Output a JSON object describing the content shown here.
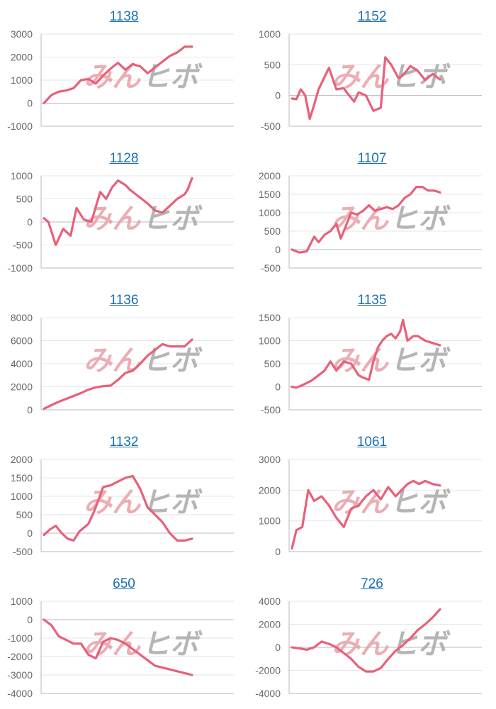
{
  "colors": {
    "line": "#e8607a",
    "grid": "#e6e6e6",
    "axis": "#b8b8b8",
    "tick_text": "#666666",
    "title_link": "#1a6fb0",
    "watermark_pink": "#e8a0a8",
    "watermark_gray": "#a9a9a9"
  },
  "watermark": {
    "part1": "みん",
    "part2": "ヒボ"
  },
  "chart_data": [
    {
      "type": "line",
      "title": "1138",
      "yticks": [
        3000,
        2000,
        1000,
        0,
        -1000
      ],
      "ylim": [
        -1000,
        3000
      ],
      "x": [
        0,
        5,
        10,
        15,
        20,
        25,
        30,
        35,
        40,
        45,
        50,
        55,
        60,
        62,
        65,
        70,
        75,
        80,
        85,
        90,
        95,
        100
      ],
      "values": [
        0,
        350,
        500,
        550,
        650,
        1000,
        1050,
        850,
        1200,
        1500,
        1750,
        1450,
        1700,
        1650,
        1600,
        1300,
        1550,
        1800,
        2050,
        2200,
        2450,
        2450
      ]
    },
    {
      "type": "line",
      "title": "1152",
      "yticks": [
        1000,
        500,
        0,
        -500
      ],
      "ylim": [
        -500,
        1000
      ],
      "x": [
        0,
        3,
        6,
        9,
        12,
        15,
        18,
        20,
        25,
        30,
        35,
        37,
        42,
        45,
        50,
        55,
        60,
        63,
        67,
        72,
        75,
        80,
        85,
        90,
        95,
        100
      ],
      "values": [
        -50,
        -60,
        100,
        0,
        -380,
        -150,
        100,
        200,
        450,
        100,
        120,
        50,
        -100,
        50,
        0,
        -250,
        -200,
        620,
        500,
        280,
        330,
        480,
        400,
        250,
        350,
        260
      ]
    },
    {
      "type": "line",
      "title": "1128",
      "yticks": [
        1000,
        500,
        0,
        -500,
        -1000
      ],
      "ylim": [
        -1000,
        1000
      ],
      "x": [
        0,
        3,
        8,
        13,
        18,
        22,
        27,
        32,
        38,
        42,
        46,
        50,
        55,
        58,
        62,
        66,
        70,
        75,
        80,
        85,
        90,
        95,
        97,
        100
      ],
      "values": [
        80,
        0,
        -500,
        -150,
        -300,
        300,
        50,
        0,
        650,
        500,
        750,
        900,
        800,
        700,
        600,
        500,
        400,
        250,
        200,
        350,
        500,
        600,
        700,
        950
      ]
    },
    {
      "type": "line",
      "title": "1107",
      "yticks": [
        2000,
        1500,
        1000,
        500,
        0,
        -500
      ],
      "ylim": [
        -500,
        2000
      ],
      "x": [
        0,
        5,
        10,
        15,
        18,
        22,
        26,
        30,
        33,
        36,
        40,
        44,
        48,
        52,
        56,
        60,
        64,
        68,
        72,
        76,
        80,
        84,
        88,
        92,
        96,
        100
      ],
      "values": [
        0,
        -80,
        -50,
        350,
        200,
        400,
        500,
        700,
        300,
        600,
        1000,
        950,
        1050,
        1200,
        1050,
        1100,
        1150,
        1100,
        1200,
        1400,
        1500,
        1700,
        1700,
        1600,
        1600,
        1550
      ]
    },
    {
      "type": "line",
      "title": "1136",
      "yticks": [
        8000,
        6000,
        4000,
        2000,
        0
      ],
      "ylim": [
        0,
        8000
      ],
      "x": [
        0,
        5,
        10,
        15,
        20,
        25,
        30,
        35,
        40,
        45,
        50,
        55,
        60,
        65,
        70,
        75,
        80,
        85,
        90,
        95,
        100
      ],
      "values": [
        100,
        400,
        700,
        950,
        1200,
        1450,
        1750,
        1950,
        2050,
        2100,
        2600,
        3200,
        3400,
        4000,
        4700,
        5200,
        5700,
        5500,
        5500,
        5500,
        6100
      ]
    },
    {
      "type": "line",
      "title": "1135",
      "yticks": [
        1500,
        1000,
        500,
        0,
        -500
      ],
      "ylim": [
        -500,
        1500
      ],
      "x": [
        0,
        3,
        8,
        13,
        18,
        22,
        26,
        30,
        35,
        40,
        45,
        48,
        52,
        55,
        58,
        61,
        64,
        67,
        70,
        73,
        75,
        78,
        82,
        85,
        90,
        95,
        100
      ],
      "values": [
        0,
        -20,
        50,
        130,
        250,
        350,
        550,
        350,
        550,
        500,
        250,
        200,
        150,
        550,
        850,
        1000,
        1100,
        1150,
        1050,
        1200,
        1450,
        1000,
        1100,
        1100,
        1000,
        950,
        900
      ]
    },
    {
      "type": "line",
      "title": "1132",
      "yticks": [
        2000,
        1500,
        1000,
        500,
        0,
        -500
      ],
      "ylim": [
        -500,
        2000
      ],
      "x": [
        0,
        4,
        8,
        12,
        16,
        20,
        24,
        30,
        34,
        40,
        45,
        50,
        55,
        60,
        65,
        70,
        75,
        80,
        85,
        90,
        95,
        100
      ],
      "values": [
        -50,
        100,
        200,
        0,
        -150,
        -200,
        50,
        250,
        600,
        1250,
        1300,
        1400,
        1500,
        1550,
        1200,
        700,
        500,
        300,
        0,
        -200,
        -200,
        -150
      ]
    },
    {
      "type": "line",
      "title": "1061",
      "yticks": [
        3000,
        2000,
        1000,
        0
      ],
      "ylim": [
        0,
        3000
      ],
      "x": [
        0,
        3,
        7,
        11,
        15,
        20,
        25,
        30,
        35,
        40,
        45,
        50,
        55,
        60,
        65,
        70,
        74,
        78,
        82,
        86,
        90,
        95,
        100
      ],
      "values": [
        100,
        700,
        800,
        2000,
        1650,
        1800,
        1500,
        1100,
        800,
        1400,
        1500,
        1800,
        2000,
        1700,
        2100,
        1800,
        2000,
        2200,
        2300,
        2200,
        2300,
        2200,
        2150
      ]
    },
    {
      "type": "line",
      "title": "650",
      "yticks": [
        1000,
        0,
        -1000,
        -2000,
        -3000,
        -4000
      ],
      "ylim": [
        -4000,
        1000
      ],
      "x": [
        0,
        5,
        10,
        15,
        20,
        25,
        30,
        35,
        40,
        45,
        50,
        55,
        60,
        65,
        70,
        75,
        80,
        85,
        90,
        95,
        100
      ],
      "values": [
        0,
        -300,
        -900,
        -1100,
        -1300,
        -1300,
        -1900,
        -2100,
        -1200,
        -1000,
        -1100,
        -1300,
        -1600,
        -1900,
        -2200,
        -2500,
        -2600,
        -2700,
        -2800,
        -2900,
        -3000
      ]
    },
    {
      "type": "line",
      "title": "726",
      "yticks": [
        4000,
        2000,
        0,
        -2000,
        -4000
      ],
      "ylim": [
        -4000,
        4000
      ],
      "x": [
        0,
        5,
        10,
        15,
        20,
        25,
        30,
        35,
        40,
        45,
        50,
        55,
        60,
        65,
        70,
        75,
        80,
        85,
        90,
        95,
        100
      ],
      "values": [
        0,
        -100,
        -200,
        0,
        500,
        300,
        0,
        -500,
        -1000,
        -1700,
        -2100,
        -2100,
        -1800,
        -1000,
        -300,
        200,
        800,
        1500,
        2000,
        2600,
        3300
      ]
    }
  ]
}
